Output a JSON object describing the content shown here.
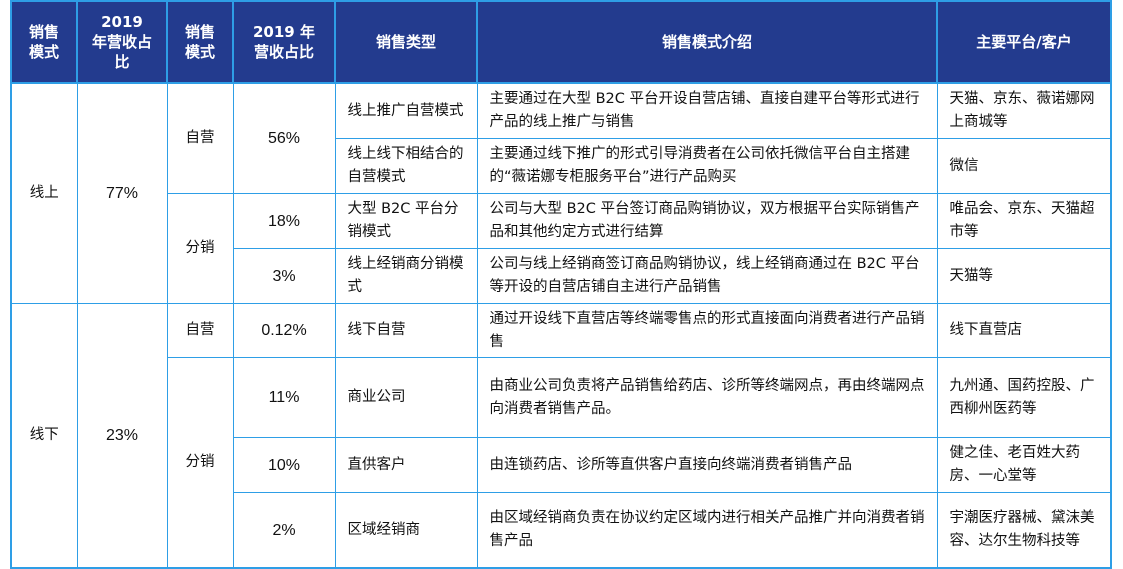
{
  "headers": [
    "销售模式",
    "2019 年营收占比",
    "销售模式",
    "2019 年营收占比",
    "销售类型",
    "销售模式介绍",
    "主要平台/客户"
  ],
  "groups": {
    "online": {
      "label": "线上",
      "share": "77%"
    },
    "offline": {
      "label": "线下",
      "share": "23%"
    }
  },
  "sub": {
    "online_self": {
      "label": "自营",
      "share": "56%"
    },
    "online_dist": {
      "label": "分销"
    },
    "offline_self": {
      "label": "自营"
    },
    "offline_dist": {
      "label": "分销"
    }
  },
  "rows": [
    {
      "share": "",
      "type": "线上推广自营模式",
      "desc": "主要通过在大型 B2C 平台开设自营店铺、直接自建平台等形式进行产品的线上推广与销售",
      "platform": "天猫、京东、薇诺娜网上商城等"
    },
    {
      "share": "",
      "type": "线上线下相结合的自营模式",
      "desc": "主要通过线下推广的形式引导消费者在公司依托微信平台自主搭建的“薇诺娜专柜服务平台”进行产品购买",
      "platform": "微信"
    },
    {
      "share": "18%",
      "type": "大型 B2C 平台分销模式",
      "desc": "公司与大型 B2C 平台签订商品购销协议，双方根据平台实际销售产品和其他约定方式进行结算",
      "platform": "唯品会、京东、天猫超市等"
    },
    {
      "share": "3%",
      "type": "线上经销商分销模式",
      "desc": "公司与线上经销商签订商品购销协议，线上经销商通过在 B2C 平台等开设的自营店铺自主进行产品销售",
      "platform": "天猫等"
    },
    {
      "share": "0.12%",
      "type": "线下自营",
      "desc": "通过开设线下直营店等终端零售点的形式直接面向消费者进行产品销售",
      "platform": "线下直营店"
    },
    {
      "share": "11%",
      "type": "商业公司",
      "desc": "由商业公司负责将产品销售给药店、诊所等终端网点，再由终端网点向消费者销售产品。",
      "platform": "九州通、国药控股、广西柳州医药等"
    },
    {
      "share": "10%",
      "type": "直供客户",
      "desc": "由连锁药店、诊所等直供客户直接向终端消费者销售产品",
      "platform": "健之佳、老百姓大药房、一心堂等"
    },
    {
      "share": "2%",
      "type": "区域经销商",
      "desc": "由区域经销商负责在协议约定区域内进行相关产品推广并向消费者销售产品",
      "platform": "宇潮医疗器械、黛沫美容、达尔生物科技等"
    }
  ]
}
